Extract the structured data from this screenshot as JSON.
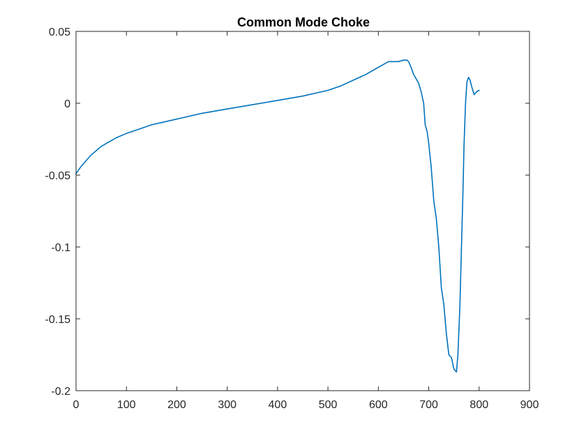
{
  "chart_data": {
    "type": "line",
    "title": "Common Mode Choke",
    "xlabel": "",
    "ylabel": "",
    "xlim": [
      0,
      900
    ],
    "ylim": [
      -0.2,
      0.05
    ],
    "xticks": [
      0,
      100,
      200,
      300,
      400,
      500,
      600,
      700,
      800,
      900
    ],
    "xtick_labels": [
      "0",
      "100",
      "200",
      "300",
      "400",
      "500",
      "600",
      "700",
      "800",
      "900"
    ],
    "yticks": [
      0.05,
      0,
      -0.05,
      -0.1,
      -0.15,
      -0.2
    ],
    "ytick_labels": [
      "0.05",
      "0",
      "-0.05",
      "-0.1",
      "-0.15",
      "-0.2"
    ],
    "grid": false,
    "line_color": "#0072BD",
    "series": [
      {
        "x": [
          0,
          10,
          20,
          30,
          40,
          50,
          60,
          80,
          100,
          125,
          150,
          175,
          200,
          250,
          300,
          350,
          400,
          450,
          500,
          525,
          550,
          575,
          600,
          610,
          620,
          630,
          640,
          650,
          657,
          660,
          665,
          670,
          675,
          680,
          685,
          690,
          693,
          697,
          700,
          705,
          710,
          715,
          720,
          725,
          730,
          735,
          740,
          745,
          750,
          755,
          758,
          762,
          765,
          768,
          770,
          773,
          776,
          779,
          782,
          785,
          790,
          795,
          800
        ],
        "y": [
          -0.049,
          -0.044,
          -0.04,
          -0.036,
          -0.033,
          -0.03,
          -0.028,
          -0.024,
          -0.021,
          -0.018,
          -0.015,
          -0.013,
          -0.011,
          -0.007,
          -0.004,
          -0.001,
          0.002,
          0.005,
          0.009,
          0.012,
          0.016,
          0.02,
          0.025,
          0.027,
          0.029,
          0.029,
          0.029,
          0.03,
          0.03,
          0.029,
          0.025,
          0.02,
          0.017,
          0.014,
          0.008,
          0.0,
          -0.015,
          -0.02,
          -0.028,
          -0.045,
          -0.068,
          -0.08,
          -0.1,
          -0.128,
          -0.14,
          -0.16,
          -0.175,
          -0.177,
          -0.185,
          -0.187,
          -0.175,
          -0.14,
          -0.1,
          -0.06,
          -0.03,
          0.0,
          0.015,
          0.018,
          0.016,
          0.012,
          0.006,
          0.008,
          0.009
        ]
      }
    ]
  }
}
